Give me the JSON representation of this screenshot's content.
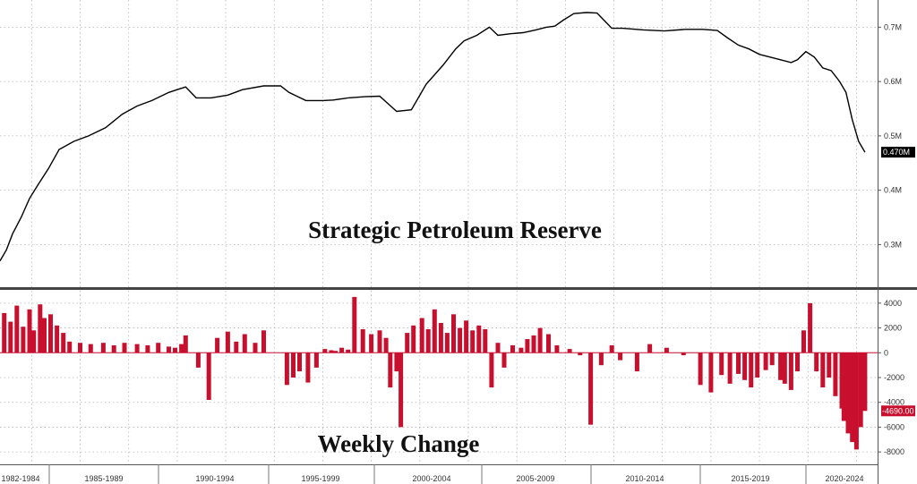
{
  "chart_data": [
    {
      "type": "line",
      "title": "Strategic Petroleum Reserve",
      "series": [
        {
          "color": "#000000",
          "x": [
            1982.0,
            1982.3,
            1982.6,
            1983.0,
            1983.4,
            1983.8,
            1984.3,
            1984.8,
            1985.5,
            1986.2,
            1987.0,
            1987.8,
            1988.5,
            1989.2,
            1990.0,
            1990.4,
            1990.8,
            1991.3,
            1992.0,
            1992.8,
            1993.5,
            1994.5,
            1995.3,
            1995.7,
            1996.5,
            1997.3,
            1997.8,
            1998.5,
            1999.3,
            2000.0,
            2000.8,
            2001.5,
            2002.2,
            2003.0,
            2003.6,
            2004.0,
            2004.6,
            2005.2,
            2005.6,
            2006.2,
            2006.8,
            2007.4,
            2007.9,
            2008.3,
            2008.7,
            2009.2,
            2009.8,
            2010.3,
            2011.0,
            2011.5,
            2012.5,
            2013.5,
            2014.5,
            2015.3,
            2016.0,
            2016.5,
            2017.0,
            2017.5,
            2018.0,
            2018.5,
            2019.0,
            2019.5,
            2019.8,
            2020.2,
            2020.6,
            2021.0,
            2021.4,
            2021.8,
            2022.1,
            2022.4,
            2022.7,
            2023.0
          ],
          "y": [
            0.27,
            0.29,
            0.32,
            0.35,
            0.385,
            0.41,
            0.44,
            0.475,
            0.49,
            0.5,
            0.515,
            0.54,
            0.555,
            0.565,
            0.58,
            0.585,
            0.59,
            0.57,
            0.57,
            0.575,
            0.585,
            0.592,
            0.592,
            0.58,
            0.565,
            0.565,
            0.566,
            0.57,
            0.572,
            0.573,
            0.545,
            0.548,
            0.595,
            0.63,
            0.66,
            0.675,
            0.685,
            0.7,
            0.685,
            0.688,
            0.69,
            0.695,
            0.7,
            0.702,
            0.713,
            0.725,
            0.727,
            0.726,
            0.698,
            0.698,
            0.695,
            0.693,
            0.696,
            0.696,
            0.694,
            0.68,
            0.667,
            0.66,
            0.65,
            0.645,
            0.64,
            0.635,
            0.64,
            0.655,
            0.645,
            0.625,
            0.62,
            0.6,
            0.58,
            0.53,
            0.49,
            0.47
          ]
        }
      ],
      "ylim": [
        0.22,
        0.75
      ],
      "yticks": [
        0.3,
        0.4,
        0.5,
        0.6,
        0.7
      ],
      "ytick_labels": [
        "0.3M",
        "0.4M",
        "0.5M",
        "0.6M",
        "0.7M"
      ],
      "last_value_label": "0.470M"
    },
    {
      "type": "bar",
      "title": "Weekly Change",
      "series": [
        {
          "color": "#c8102e",
          "x": [
            1982.2,
            1982.5,
            1982.8,
            1983.1,
            1983.4,
            1983.6,
            1983.9,
            1984.1,
            1984.4,
            1984.7,
            1985.0,
            1985.3,
            1985.8,
            1986.3,
            1986.9,
            1987.4,
            1987.9,
            1988.5,
            1989.0,
            1989.5,
            1990.0,
            1990.3,
            1990.6,
            1990.8,
            1991.4,
            1991.9,
            1992.3,
            1992.8,
            1993.2,
            1993.6,
            1994.1,
            1994.5,
            1995.6,
            1995.9,
            1996.2,
            1996.6,
            1997.0,
            1997.4,
            1997.7,
            1997.9,
            1998.2,
            1998.5,
            1998.8,
            1999.2,
            1999.6,
            2000.0,
            2000.3,
            2000.5,
            2000.8,
            2001.0,
            2001.3,
            2001.6,
            2002.0,
            2002.3,
            2002.6,
            2002.9,
            2003.2,
            2003.5,
            2003.8,
            2004.1,
            2004.4,
            2004.7,
            2005.0,
            2005.3,
            2005.6,
            2005.9,
            2006.3,
            2006.7,
            2007.0,
            2007.3,
            2007.6,
            2008.0,
            2008.4,
            2009.0,
            2009.5,
            2010.0,
            2010.5,
            2011.0,
            2011.4,
            2012.2,
            2012.8,
            2013.6,
            2014.4,
            2015.2,
            2015.7,
            2016.2,
            2016.6,
            2017.0,
            2017.3,
            2017.6,
            2017.9,
            2018.3,
            2018.6,
            2019.0,
            2019.2,
            2019.5,
            2019.8,
            2020.1,
            2020.4,
            2020.7,
            2021.0,
            2021.3,
            2021.6,
            2021.9,
            2022.0,
            2022.2,
            2022.4,
            2022.6,
            2022.8,
            2023.0
          ],
          "y": [
            3200,
            2500,
            3800,
            2100,
            3500,
            1800,
            3900,
            2800,
            3100,
            2200,
            1600,
            900,
            800,
            700,
            800,
            600,
            800,
            700,
            600,
            800,
            500,
            400,
            700,
            1400,
            -1200,
            -3800,
            1200,
            1700,
            900,
            1500,
            800,
            1800,
            -2600,
            -2000,
            -1500,
            -2400,
            -1200,
            300,
            200,
            150,
            400,
            250,
            4500,
            1900,
            1500,
            1800,
            1200,
            -2800,
            -1500,
            -6000,
            1600,
            2200,
            2800,
            1900,
            3500,
            2400,
            1600,
            3100,
            2000,
            2600,
            1800,
            2200,
            1900,
            -2800,
            800,
            -1200,
            600,
            400,
            1100,
            1400,
            2000,
            1500,
            600,
            300,
            -200,
            -5800,
            -1000,
            600,
            -600,
            -1500,
            700,
            400,
            -200,
            -2600,
            -3200,
            -1800,
            -2500,
            -1700,
            -2200,
            -2800,
            -2000,
            -1400,
            -1000,
            -2200,
            -2500,
            -3000,
            -1500,
            1800,
            4000,
            -1500,
            -2800,
            -2000,
            -3500,
            -4500,
            -5500,
            -6500,
            -7200,
            -7800,
            -6000,
            -4690
          ]
        }
      ],
      "ylim": [
        -9000,
        5000
      ],
      "yticks": [
        4000,
        2000,
        0,
        -2000,
        -4000,
        -6000,
        -8000
      ],
      "ytick_labels": [
        "4000",
        "2000",
        "0",
        "-2000",
        "-4000",
        "-6000",
        "-8000"
      ],
      "last_value_label": "-4690.00"
    }
  ],
  "x_axis": {
    "categories": [
      "1982-1984",
      "1985-1989",
      "1990-1994",
      "1995-1999",
      "2000-2004",
      "2005-2009",
      "2010-2014",
      "2015-2019",
      "2020-2024"
    ]
  }
}
